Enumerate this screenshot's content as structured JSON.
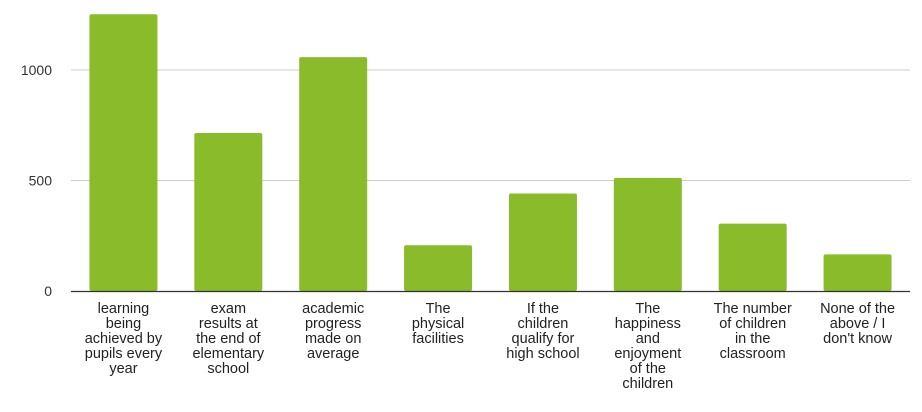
{
  "chart_data": {
    "type": "bar",
    "categories": [
      [
        "learning",
        "being",
        "achieved by",
        "pupils every",
        "year"
      ],
      [
        "exam",
        "results at",
        "the end of",
        "elementary",
        "school"
      ],
      [
        "academic",
        "progress",
        "made on",
        "average"
      ],
      [
        "The",
        "physical",
        "facilities"
      ],
      [
        "If the",
        "children",
        "qualify for",
        "high school"
      ],
      [
        "The",
        "happiness",
        "and",
        "enjoyment",
        "of the",
        "children"
      ],
      [
        "The number",
        "of children",
        "in the",
        "classroom"
      ],
      [
        "None of the",
        "above / I",
        "don't know"
      ]
    ],
    "values": [
      1252,
      715,
      1058,
      207,
      441,
      512,
      305,
      166
    ],
    "ylim": [
      0,
      1250
    ],
    "yticks": [
      0,
      500,
      1000
    ],
    "grid": true,
    "bar_color": "#8ABB2A",
    "grid_color": "#CCCCCC",
    "axis_color": "#333333"
  }
}
